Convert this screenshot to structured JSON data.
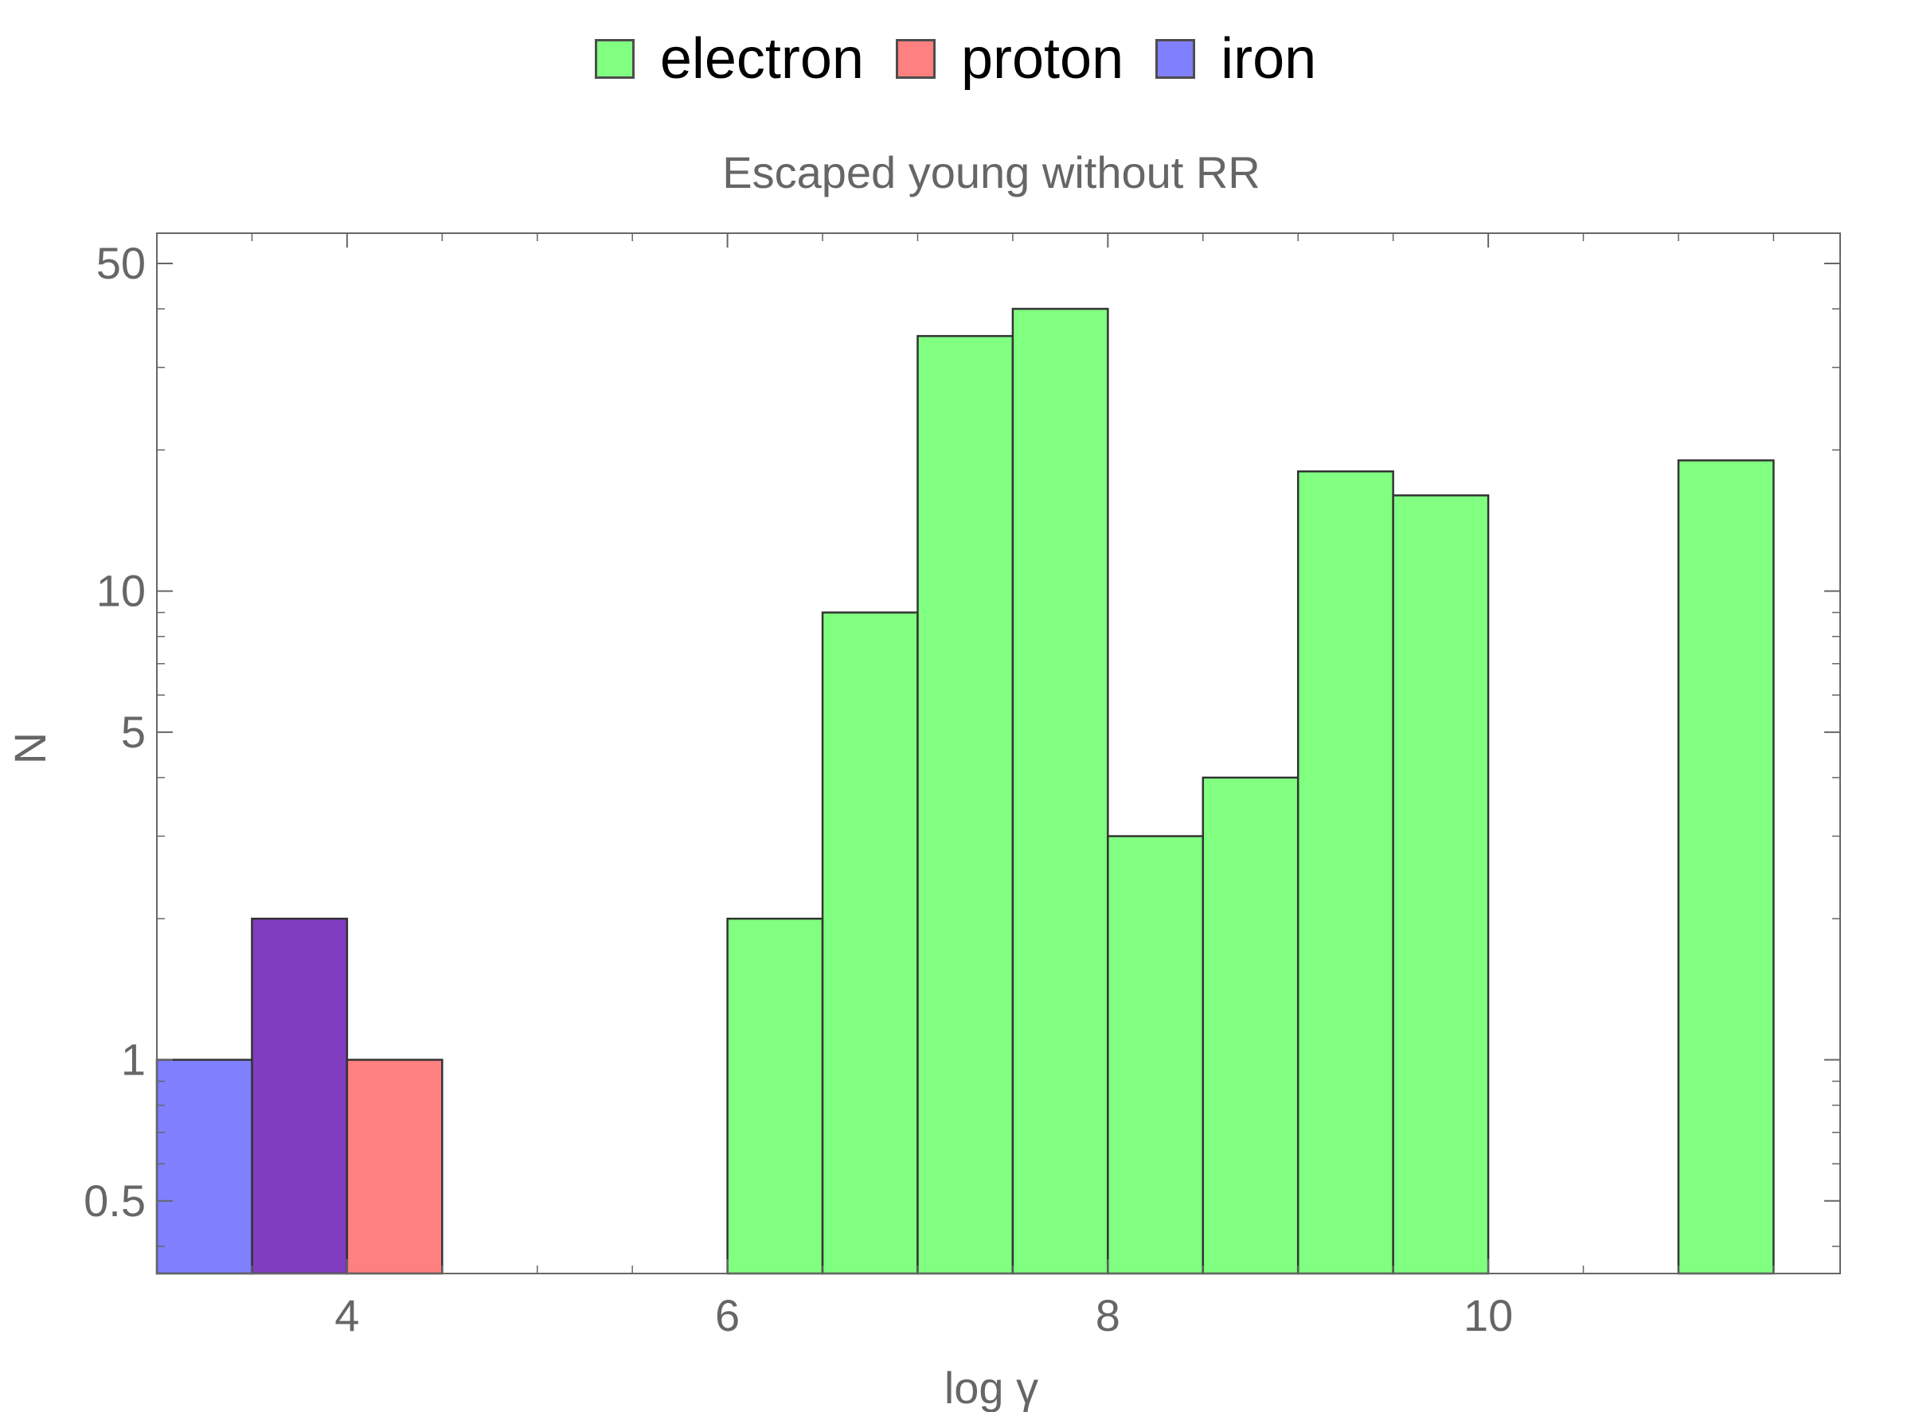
{
  "legend": {
    "items": [
      {
        "label": "electron",
        "color": "#80ff80"
      },
      {
        "label": "proton",
        "color": "#ff8080"
      },
      {
        "label": "iron",
        "color": "#8080ff"
      }
    ]
  },
  "chart_data": {
    "type": "bar",
    "title": "Escaped young without RR",
    "xlabel": "log γ",
    "ylabel": "N",
    "xlim": [
      3,
      11.85
    ],
    "ylim": [
      0.35,
      58
    ],
    "yscale": "log",
    "xticks": [
      4,
      6,
      8,
      10
    ],
    "yticks": [
      0.5,
      1,
      5,
      10,
      50
    ],
    "overlap_color": "#803dbf",
    "series": [
      {
        "name": "electron",
        "color": "#80ff80",
        "bins": [
          {
            "x0": 6.0,
            "x1": 6.5,
            "value": 2
          },
          {
            "x0": 6.5,
            "x1": 7.0,
            "value": 9
          },
          {
            "x0": 7.0,
            "x1": 7.5,
            "value": 35
          },
          {
            "x0": 7.5,
            "x1": 8.0,
            "value": 40
          },
          {
            "x0": 8.0,
            "x1": 8.5,
            "value": 3
          },
          {
            "x0": 8.5,
            "x1": 9.0,
            "value": 4
          },
          {
            "x0": 9.0,
            "x1": 9.5,
            "value": 18
          },
          {
            "x0": 9.5,
            "x1": 10.0,
            "value": 16
          },
          {
            "x0": 11.0,
            "x1": 11.5,
            "value": 19
          }
        ]
      },
      {
        "name": "proton",
        "color": "#ff8080",
        "bins": [
          {
            "x0": 3.5,
            "x1": 4.0,
            "value": 2
          },
          {
            "x0": 4.0,
            "x1": 4.5,
            "value": 1
          }
        ]
      },
      {
        "name": "iron",
        "color": "#8080ff",
        "bins": [
          {
            "x0": 3.0,
            "x1": 3.5,
            "value": 1
          },
          {
            "x0": 3.5,
            "x1": 4.0,
            "value": 2
          }
        ]
      }
    ]
  }
}
